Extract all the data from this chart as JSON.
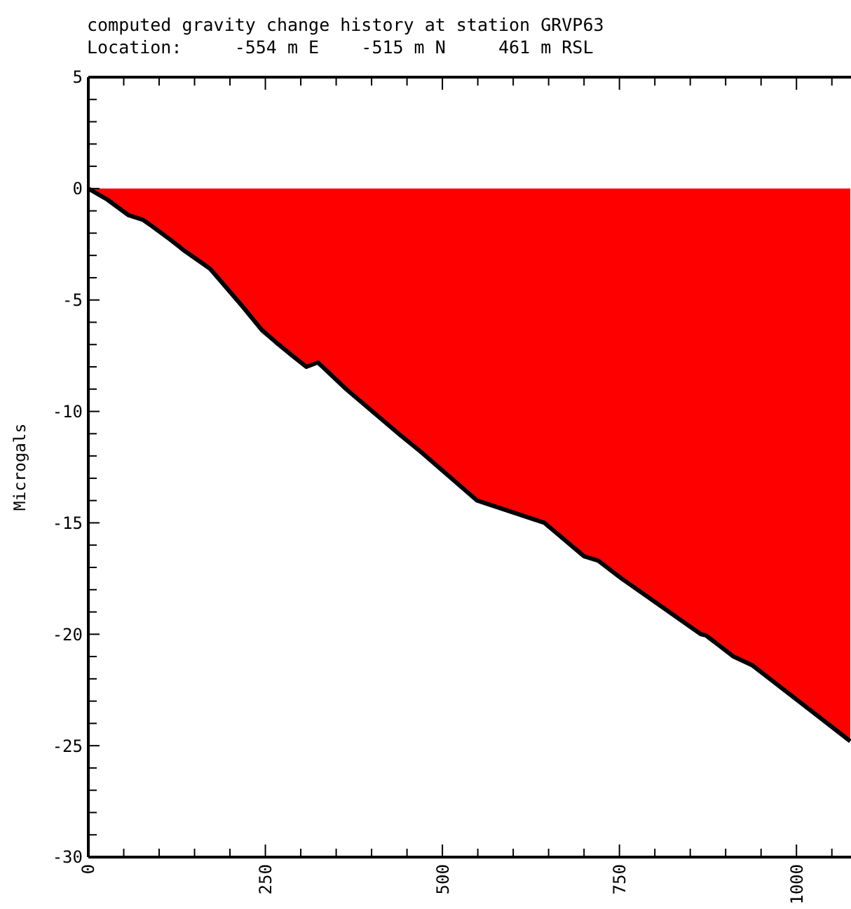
{
  "chart_data": {
    "type": "area",
    "title": "computed gravity change history at station GRVP63",
    "subtitle": "Location:     -554 m E    -515 m N     461 m RSL",
    "ylabel": "Microgals",
    "x": [
      0,
      27,
      57,
      77,
      86,
      116,
      136,
      172,
      218,
      245,
      265,
      288,
      308,
      324,
      364,
      440,
      469,
      549,
      644,
      700,
      720,
      753,
      865,
      872,
      911,
      938,
      1076
    ],
    "series": [
      {
        "color": "#ff0000",
        "values": [
          0,
          -0.5,
          -1.2,
          -1.4,
          -1.6,
          -2.3,
          -2.8,
          -3.6,
          -5.3,
          -6.35,
          -6.9,
          -7.5,
          -8.0,
          -7.8,
          -9.0,
          -11.05,
          -11.8,
          -14.0,
          -15.0,
          -16.5,
          -16.7,
          -17.5,
          -20.0,
          -20.05,
          -21.0,
          -21.4,
          -24.8
        ]
      }
    ],
    "xlim": [
      0,
      1077
    ],
    "ylim": [
      -30,
      5
    ],
    "xticks": [
      0,
      {
        "value": 50,
        "label": null
      },
      {
        "value": 100,
        "label": null
      },
      {
        "value": 150,
        "label": null
      },
      {
        "value": 200,
        "label": null
      },
      250,
      {
        "value": 300,
        "label": null
      },
      {
        "value": 350,
        "label": null
      },
      {
        "value": 400,
        "label": null
      },
      {
        "value": 450,
        "label": null
      },
      500,
      {
        "value": 550,
        "label": null
      },
      {
        "value": 600,
        "label": null
      },
      {
        "value": 650,
        "label": null
      },
      {
        "value": 700,
        "label": null
      },
      750,
      {
        "value": 800,
        "label": null
      },
      {
        "value": 850,
        "label": null
      },
      {
        "value": 900,
        "label": null
      },
      {
        "value": 950,
        "label": null
      },
      1000,
      {
        "value": 1050,
        "label": null
      }
    ],
    "yticks": [
      -30,
      {
        "value": -29,
        "label": null
      },
      {
        "value": -28,
        "label": null
      },
      {
        "value": -27,
        "label": null
      },
      {
        "value": -26,
        "label": null
      },
      -25,
      {
        "value": -24,
        "label": null
      },
      {
        "value": -23,
        "label": null
      },
      {
        "value": -22,
        "label": null
      },
      {
        "value": -21,
        "label": null
      },
      -20,
      {
        "value": -19,
        "label": null
      },
      {
        "value": -18,
        "label": null
      },
      {
        "value": -17,
        "label": null
      },
      {
        "value": -16,
        "label": null
      },
      -15,
      {
        "value": -14,
        "label": null
      },
      {
        "value": -13,
        "label": null
      },
      {
        "value": -12,
        "label": null
      },
      {
        "value": -11,
        "label": null
      },
      -10,
      {
        "value": -9,
        "label": null
      },
      {
        "value": -8,
        "label": null
      },
      {
        "value": -7,
        "label": null
      },
      {
        "value": -6,
        "label": null
      },
      -5,
      {
        "value": -4,
        "label": null
      },
      {
        "value": -3,
        "label": null
      },
      {
        "value": -2,
        "label": null
      },
      {
        "value": -1,
        "label": null
      },
      0,
      {
        "value": 1,
        "label": null
      },
      {
        "value": 2,
        "label": null
      },
      {
        "value": 3,
        "label": null
      },
      {
        "value": 4,
        "label": null
      },
      5
    ]
  }
}
